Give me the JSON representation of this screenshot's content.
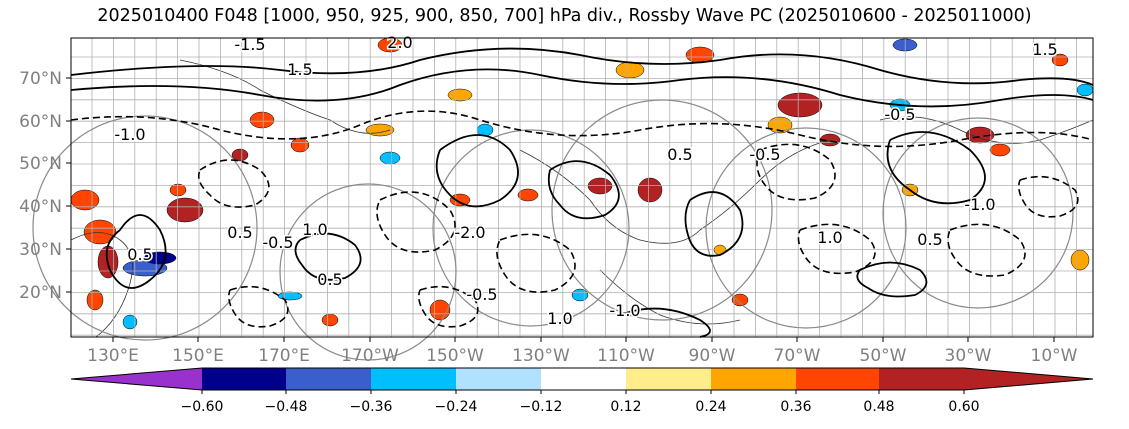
{
  "title": "2025010400 F048 [1000, 950, 925, 900, 850, 700] hPa div., Rossby Wave PC (2025010600 - 2025011000)",
  "map": {
    "lat_ticks": [
      "70°N",
      "60°N",
      "50°N",
      "40°N",
      "30°N",
      "20°N"
    ],
    "lon_ticks": [
      "130°E",
      "150°E",
      "170°E",
      "170°W",
      "150°W",
      "130°W",
      "110°W",
      "90°W",
      "70°W",
      "50°W",
      "30°W",
      "10°W"
    ],
    "contour_labels": [
      "0.5",
      "-0.5",
      "1.0",
      "-1.0",
      "1.5",
      "-1.5",
      "2.0",
      "-2.0",
      "0.5",
      "-0.5",
      "1.0",
      "-1.0",
      "0.5",
      "-0.5",
      "1.0",
      "0.5",
      "-0.5",
      "1.5",
      "-1.0",
      "0.5"
    ]
  },
  "colorbar": {
    "ticks": [
      "−0.60",
      "−0.48",
      "−0.36",
      "−0.24",
      "−0.12",
      "0.12",
      "0.24",
      "0.36",
      "0.48",
      "0.60"
    ],
    "colors": [
      "#9932cc",
      "#00008b",
      "#3a5fcd",
      "#00bfff",
      "#b0e2ff",
      "#ffffff",
      "#ffec8b",
      "#ffa500",
      "#ff4500",
      "#b22222",
      "#ff82ab"
    ]
  }
}
